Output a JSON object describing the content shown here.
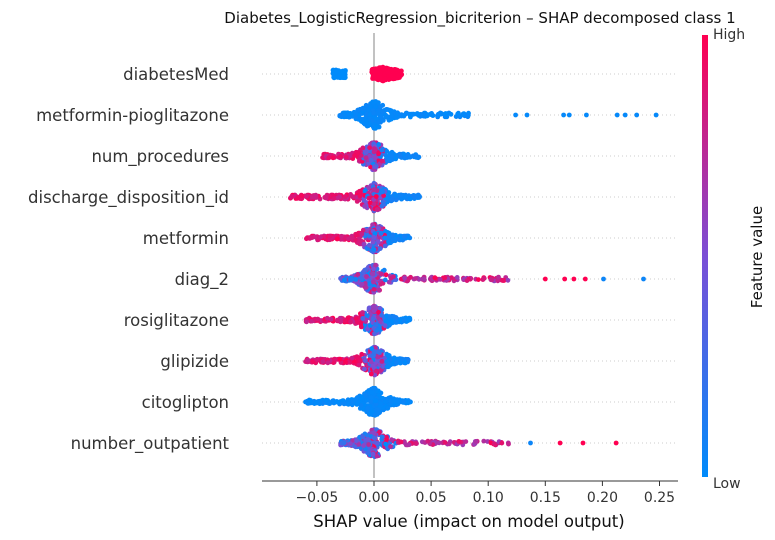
{
  "chart_data": {
    "type": "scatter",
    "subtype": "shap-beeswarm",
    "title": "Diabetes_LogisticRegression_bicriterion – SHAP decomposed class 1",
    "xlabel": "SHAP value (impact on model output)",
    "ylabel": "",
    "xlim": [
      -0.1,
      0.27
    ],
    "xticks": [
      -0.05,
      0.0,
      0.05,
      0.1,
      0.15,
      0.2,
      0.25
    ],
    "xtick_labels": [
      "−0.05",
      "0.00",
      "0.05",
      "0.10",
      "0.15",
      "0.20",
      "0.25"
    ],
    "zero_line": 0.0,
    "grid": false,
    "colorbar": {
      "title": "Feature value",
      "high_label": "High",
      "low_label": "Low",
      "low_color": "#008bfb",
      "mid_color": "#7b4fd6",
      "high_color": "#ff0051"
    },
    "features": [
      {
        "name": "diabetesMed",
        "min": -0.038,
        "max": 0.027,
        "core": [
          -0.036,
          0.02
        ],
        "mode": "binary"
      },
      {
        "name": "metformin-pioglitazone",
        "min": -0.033,
        "max": 0.247,
        "core": [
          -0.03,
          0.085
        ],
        "outliers": [
          0.124,
          0.134,
          0.166,
          0.171,
          0.186,
          0.213,
          0.22,
          0.23,
          0.247
        ],
        "mode": "blue"
      },
      {
        "name": "num_procedures",
        "min": -0.057,
        "max": 0.048,
        "core": [
          -0.045,
          0.04
        ],
        "mode": "mixed-red-left"
      },
      {
        "name": "discharge_disposition_id",
        "min": -0.082,
        "max": 0.048,
        "core": [
          -0.075,
          0.04
        ],
        "mode": "mixed-red-left"
      },
      {
        "name": "metformin",
        "min": -0.072,
        "max": 0.037,
        "core": [
          -0.06,
          0.032
        ],
        "mode": "mixed-red-left"
      },
      {
        "name": "diag_2",
        "min": -0.03,
        "max": 0.236,
        "core": [
          -0.03,
          0.12
        ],
        "outliers": [
          0.15,
          0.167,
          0.175,
          0.185,
          0.201,
          0.236
        ],
        "mode": "mixed-red-right"
      },
      {
        "name": "rosiglitazone",
        "min": -0.068,
        "max": 0.037,
        "core": [
          -0.06,
          0.032
        ],
        "mode": "mixed-red-left"
      },
      {
        "name": "glipizide",
        "min": -0.066,
        "max": 0.033,
        "core": [
          -0.06,
          0.03
        ],
        "mode": "mixed-red-left"
      },
      {
        "name": "citoglipton",
        "min": -0.064,
        "max": 0.036,
        "core": [
          -0.06,
          0.032
        ],
        "mode": "blue"
      },
      {
        "name": "number_outpatient",
        "min": -0.03,
        "max": 0.212,
        "core": [
          -0.03,
          0.12
        ],
        "outliers": [
          0.137,
          0.163,
          0.183,
          0.212
        ],
        "mode": "mixed-red-right"
      }
    ]
  }
}
